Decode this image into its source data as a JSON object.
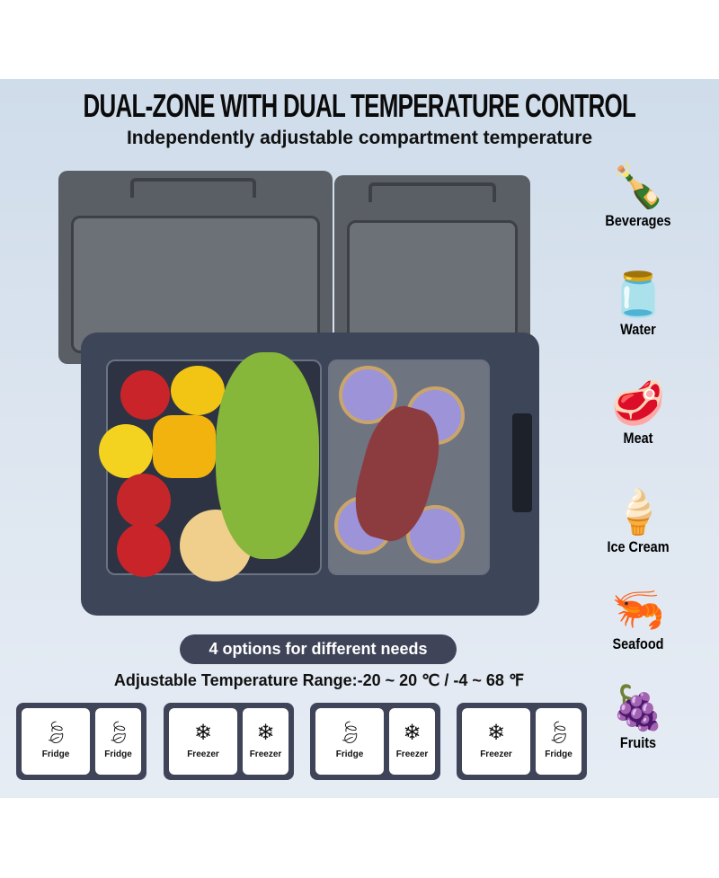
{
  "header": {
    "title": "DUAL-ZONE WITH DUAL TEMPERATURE CONTROL",
    "subtitle": "Independently adjustable compartment temperature"
  },
  "categories": [
    {
      "label": "Beverages",
      "icon": "bottle-icon"
    },
    {
      "label": "Water",
      "icon": "milk-jar-icon"
    },
    {
      "label": "Meat",
      "icon": "steak-icon"
    },
    {
      "label": "Ice Cream",
      "icon": "ice-cream-icon"
    },
    {
      "label": "Seafood",
      "icon": "shrimp-icon"
    },
    {
      "label": "Fruits",
      "icon": "grapes-icon"
    }
  ],
  "options_label": "4 options for different needs",
  "temperature_range": "Adjustable Temperature Range:-20 ~ 20 ℃ / -4 ~ 68 ℉",
  "options": [
    {
      "left": {
        "label": "Fridge",
        "icon": "leaf-icon"
      },
      "right": {
        "label": "Fridge",
        "icon": "leaf-icon"
      }
    },
    {
      "left": {
        "label": "Freezer",
        "icon": "snowflake-icon"
      },
      "right": {
        "label": "Freezer",
        "icon": "snowflake-icon"
      }
    },
    {
      "left": {
        "label": "Fridge",
        "icon": "leaf-icon"
      },
      "right": {
        "label": "Freezer",
        "icon": "snowflake-icon"
      }
    },
    {
      "left": {
        "label": "Freezer",
        "icon": "snowflake-icon"
      },
      "right": {
        "label": "Fridge",
        "icon": "leaf-icon"
      }
    }
  ],
  "colors": {
    "panel": "#3f4459",
    "background": "#dbe4ef"
  }
}
